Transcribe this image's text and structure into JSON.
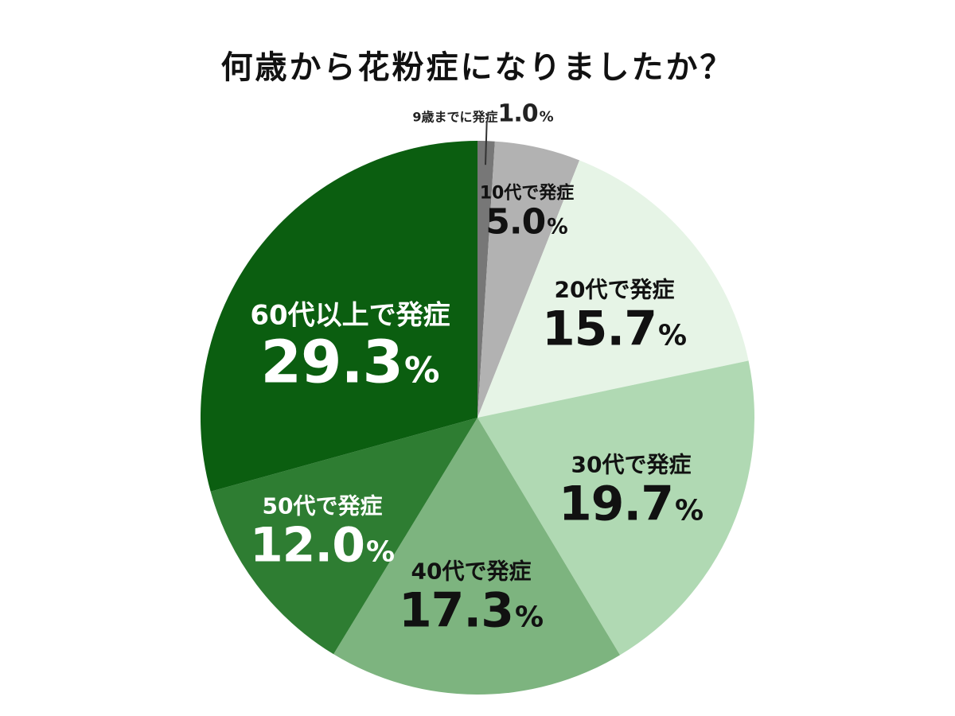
{
  "chart_data": {
    "type": "pie",
    "title": "何歳から花粉症になりましたか？",
    "unit": "%",
    "slices": [
      {
        "label": "9歳までに発症",
        "value": 1.0,
        "display": "1.0",
        "color": "#777777",
        "text_color": "#222222"
      },
      {
        "label": "10代で発症",
        "value": 5.0,
        "display": "5.0",
        "color": "#b2b2b2",
        "text_color": "#111111"
      },
      {
        "label": "20代で発症",
        "value": 15.7,
        "display": "15.7",
        "color": "#e6f4e6",
        "text_color": "#111111"
      },
      {
        "label": "30代で発症",
        "value": 19.7,
        "display": "19.7",
        "color": "#b0d9b3",
        "text_color": "#111111"
      },
      {
        "label": "40代で発症",
        "value": 17.3,
        "display": "17.3",
        "color": "#7db47f",
        "text_color": "#111111"
      },
      {
        "label": "50代で発症",
        "value": 12.0,
        "display": "12.0",
        "color": "#2e7d32",
        "text_color": "#ffffff"
      },
      {
        "label": "60代以上で発症",
        "value": 29.3,
        "display": "29.3",
        "color": "#0b5e10",
        "text_color": "#ffffff"
      }
    ]
  }
}
